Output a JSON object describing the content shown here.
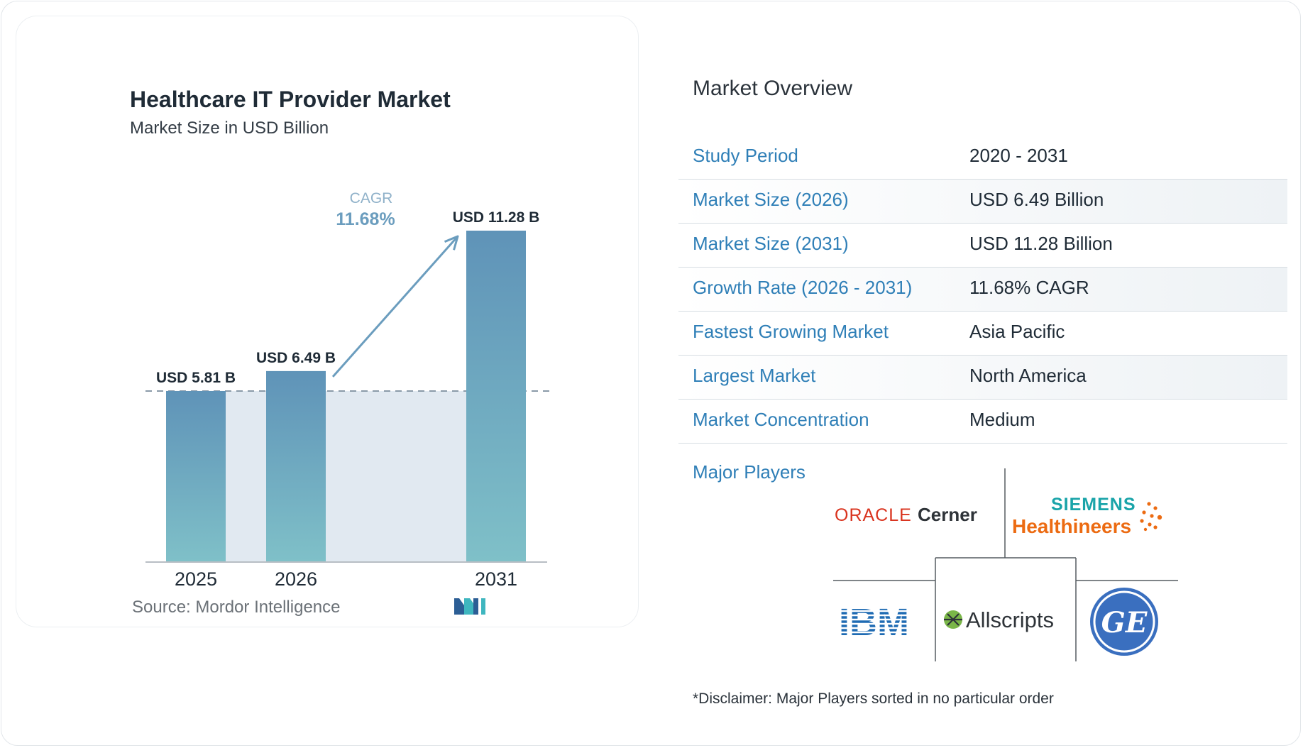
{
  "chart_data": {
    "type": "bar",
    "title": "Healthcare IT Provider Market",
    "subtitle": "Market Size in USD Billion",
    "categories": [
      "2025",
      "2026",
      "2031"
    ],
    "values": [
      5.81,
      6.49,
      11.28
    ],
    "data_labels": [
      "USD 5.81 B",
      "USD 6.49 B",
      "USD 11.28 B"
    ],
    "ylim": [
      0,
      11.28
    ],
    "cagr_label": "CAGR",
    "cagr_value": "11.68%",
    "source": "Source:  Mordor Intelligence",
    "colors": {
      "bar_top": "#5f93b8",
      "bar_bottom": "#7fc0c8",
      "band": "#e1e9f1",
      "arrow": "#6b9dbe"
    }
  },
  "overview": {
    "title": "Market Overview",
    "rows": [
      {
        "key": "Study Period",
        "value": "2020 - 2031"
      },
      {
        "key": "Market Size (2026)",
        "value": "USD 6.49 Billion"
      },
      {
        "key": "Market Size (2031)",
        "value": "USD 11.28 Billion"
      },
      {
        "key": "Growth Rate (2026 - 2031)",
        "value": "11.68% CAGR"
      },
      {
        "key": "Fastest Growing Market",
        "value": "Asia Pacific"
      },
      {
        "key": "Largest Market",
        "value": "North America"
      },
      {
        "key": "Market Concentration",
        "value": "Medium"
      }
    ],
    "major_players_label": "Major Players",
    "players": {
      "oracle": "ORACLE",
      "cerner": "Cerner",
      "siemens": "SIEMENS",
      "healthineers": "Healthineers",
      "ibm": "IBM",
      "allscripts": "Allscripts",
      "ge": "GE"
    },
    "disclaimer": "*Disclaimer: Major Players sorted in no particular order"
  }
}
